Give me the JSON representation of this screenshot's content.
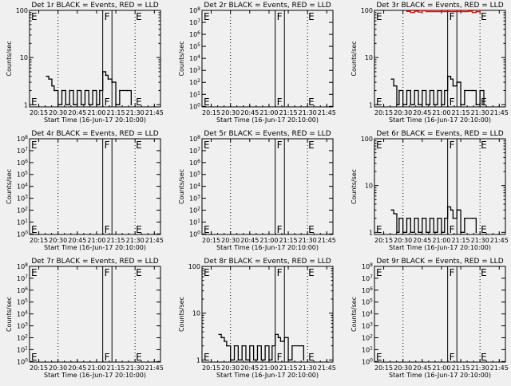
{
  "figure_background": "#f0f0f0",
  "line_color": "#000000",
  "lld_color": "#ff0000",
  "chart_data": [
    {
      "type": "line",
      "title": "Det 1r BLACK = Events, RED = LLD",
      "xlabel": "Start Time (16-Jun-17 20:10:00)",
      "ylabel": "Counts/sec",
      "scale": "log",
      "ylim": [
        0.9,
        100
      ],
      "y_ticks": [
        1,
        10,
        100
      ],
      "y_tick_labels": [
        "1",
        "10",
        "100"
      ],
      "xlim": [
        20.13,
        21.83
      ],
      "x_tick_labels": [
        "20:15",
        "20:30",
        "20:45",
        "21:00",
        "21:15",
        "21:30",
        "21:45"
      ],
      "x_tick_values": [
        20.25,
        20.5,
        20.75,
        21.0,
        21.25,
        21.5,
        21.75
      ],
      "dotted_lines": [
        20.5,
        21.5
      ],
      "solid_lines": [
        21.08,
        21.2
      ],
      "markers": [
        {
          "label": "E",
          "x": 20.14
        },
        {
          "label": "F",
          "x": 21.09
        },
        {
          "label": "E",
          "x": 21.5
        }
      ],
      "series": [
        {
          "name": "Events",
          "x": [
            20.35,
            20.38,
            20.42,
            20.45,
            20.5,
            20.55,
            20.6,
            20.65,
            20.7,
            20.75,
            20.8,
            20.85,
            20.9,
            20.95,
            21.0,
            21.04,
            21.08,
            21.12,
            21.15,
            21.2,
            21.25,
            21.3,
            21.4,
            21.45
          ],
          "values": [
            4.0,
            3.5,
            2.5,
            2,
            1,
            2,
            1,
            2,
            1,
            2,
            1,
            2,
            1,
            2,
            1,
            2,
            5.0,
            4.2,
            3.5,
            3.0,
            1,
            2,
            2,
            1
          ]
        },
        {
          "name": "LLD",
          "x": [],
          "values": []
        }
      ]
    },
    {
      "type": "line",
      "title": "Det 2r BLACK = Events, RED = LLD",
      "xlabel": "Start Time (16-Jun-17 20:10:00)",
      "ylabel": "Counts/sec",
      "scale": "log",
      "ylim": [
        0.9,
        100000000.0
      ],
      "y_ticks": [
        1,
        10,
        100,
        1000,
        10000,
        100000,
        1000000,
        10000000,
        100000000.0
      ],
      "y_tick_labels": [
        "10^0",
        "10^1",
        "10^2",
        "10^3",
        "10^4",
        "10^5",
        "10^6",
        "10^7",
        "10^8"
      ],
      "xlim": [
        20.13,
        21.83
      ],
      "x_tick_labels": [
        "20:15",
        "20:30",
        "20:45",
        "21:00",
        "21:15",
        "21:30",
        "21:45"
      ],
      "x_tick_values": [
        20.25,
        20.5,
        20.75,
        21.0,
        21.25,
        21.5,
        21.75
      ],
      "dotted_lines": [
        20.5,
        21.5
      ],
      "solid_lines": [
        21.08,
        21.2
      ],
      "markers": [
        {
          "label": "E",
          "x": 20.14
        },
        {
          "label": "F",
          "x": 21.09
        },
        {
          "label": "E",
          "x": 21.5
        }
      ],
      "series": [
        {
          "name": "Events",
          "x": [],
          "values": []
        },
        {
          "name": "LLD",
          "x": [],
          "values": []
        }
      ]
    },
    {
      "type": "line",
      "title": "Det 3r BLACK = Events, RED = LLD",
      "xlabel": "Start Time (16-Jun-17 20:10:00)",
      "ylabel": "Counts/sec",
      "scale": "log",
      "ylim": [
        0.9,
        100
      ],
      "y_ticks": [
        1,
        10,
        100
      ],
      "y_tick_labels": [
        "1",
        "10",
        "100"
      ],
      "xlim": [
        20.13,
        21.83
      ],
      "x_tick_labels": [
        "20:15",
        "20:30",
        "20:45",
        "21:00",
        "21:15",
        "21:30",
        "21:45"
      ],
      "x_tick_values": [
        20.25,
        20.5,
        20.75,
        21.0,
        21.25,
        21.5,
        21.75
      ],
      "dotted_lines": [
        20.5,
        21.5
      ],
      "solid_lines": [
        21.08,
        21.2
      ],
      "markers": [
        {
          "label": "E",
          "x": 20.14
        },
        {
          "label": "F",
          "x": 21.09
        },
        {
          "label": "E",
          "x": 21.5
        }
      ],
      "series": [
        {
          "name": "Events",
          "x": [
            20.35,
            20.38,
            20.42,
            20.45,
            20.5,
            20.55,
            20.6,
            20.65,
            20.7,
            20.75,
            20.8,
            20.85,
            20.9,
            20.95,
            21.0,
            21.04,
            21.08,
            21.12,
            21.15,
            21.2,
            21.25,
            21.3,
            21.4,
            21.45,
            21.5,
            21.55
          ],
          "values": [
            3.5,
            2.5,
            1,
            2,
            1,
            2,
            1,
            2,
            1,
            2,
            1,
            2,
            1,
            2,
            1,
            2,
            4.0,
            3.5,
            2.5,
            3.0,
            1,
            2,
            2,
            1,
            2,
            1
          ]
        },
        {
          "name": "LLD",
          "x": [
            20.55,
            20.6,
            20.65,
            20.7,
            20.75,
            20.8,
            21.35,
            21.4,
            21.45,
            21.5
          ],
          "values": [
            95,
            90,
            96,
            92,
            98,
            94,
            96,
            90,
            94,
            98
          ]
        }
      ]
    },
    {
      "type": "line",
      "title": "Det 4r BLACK = Events, RED = LLD",
      "xlabel": "Start Time (16-Jun-17 20:10:00)",
      "ylabel": "Counts/sec",
      "scale": "log",
      "ylim": [
        0.9,
        100000000.0
      ],
      "y_ticks": [
        1,
        10,
        100,
        1000,
        10000,
        100000,
        1000000,
        10000000,
        100000000.0
      ],
      "y_tick_labels": [
        "10^0",
        "10^1",
        "10^2",
        "10^3",
        "10^4",
        "10^5",
        "10^6",
        "10^7",
        "10^8"
      ],
      "xlim": [
        20.13,
        21.83
      ],
      "x_tick_labels": [
        "20:15",
        "20:30",
        "20:45",
        "21:00",
        "21:15",
        "21:30",
        "21:45"
      ],
      "x_tick_values": [
        20.25,
        20.5,
        20.75,
        21.0,
        21.25,
        21.5,
        21.75
      ],
      "dotted_lines": [
        20.5,
        21.5
      ],
      "solid_lines": [
        21.08,
        21.2
      ],
      "markers": [
        {
          "label": "E",
          "x": 20.14
        },
        {
          "label": "F",
          "x": 21.09
        },
        {
          "label": "E",
          "x": 21.5
        }
      ],
      "series": [
        {
          "name": "Events",
          "x": [],
          "values": []
        },
        {
          "name": "LLD",
          "x": [],
          "values": []
        }
      ]
    },
    {
      "type": "line",
      "title": "Det 5r BLACK = Events, RED = LLD",
      "xlabel": "Start Time (16-Jun-17 20:10:00)",
      "ylabel": "Counts/sec",
      "scale": "log",
      "ylim": [
        0.9,
        100000000.0
      ],
      "y_ticks": [
        1,
        10,
        100,
        1000,
        10000,
        100000,
        1000000,
        10000000,
        100000000.0
      ],
      "y_tick_labels": [
        "10^0",
        "10^1",
        "10^2",
        "10^3",
        "10^4",
        "10^5",
        "10^6",
        "10^7",
        "10^8"
      ],
      "xlim": [
        20.13,
        21.83
      ],
      "x_tick_labels": [
        "20:15",
        "20:30",
        "20:45",
        "21:00",
        "21:15",
        "21:30",
        "21:45"
      ],
      "x_tick_values": [
        20.25,
        20.5,
        20.75,
        21.0,
        21.25,
        21.5,
        21.75
      ],
      "dotted_lines": [
        20.5,
        21.5
      ],
      "solid_lines": [
        21.08,
        21.2
      ],
      "markers": [
        {
          "label": "E",
          "x": 20.14
        },
        {
          "label": "F",
          "x": 21.09
        },
        {
          "label": "E",
          "x": 21.5
        }
      ],
      "series": [
        {
          "name": "Events",
          "x": [],
          "values": []
        },
        {
          "name": "LLD",
          "x": [],
          "values": []
        }
      ]
    },
    {
      "type": "line",
      "title": "Det 6r BLACK = Events, RED = LLD",
      "xlabel": "Start Time (16-Jun-17 20:10:00)",
      "ylabel": "Counts/sec",
      "scale": "log",
      "ylim": [
        0.9,
        100
      ],
      "y_ticks": [
        1,
        10,
        100
      ],
      "y_tick_labels": [
        "1",
        "10",
        "100"
      ],
      "xlim": [
        20.13,
        21.83
      ],
      "x_tick_labels": [
        "20:15",
        "20:30",
        "20:45",
        "21:00",
        "21:15",
        "21:30",
        "21:45"
      ],
      "x_tick_values": [
        20.25,
        20.5,
        20.75,
        21.0,
        21.25,
        21.5,
        21.75
      ],
      "dotted_lines": [
        20.5,
        21.5
      ],
      "solid_lines": [
        21.08,
        21.2
      ],
      "markers": [
        {
          "label": "E",
          "x": 20.14
        },
        {
          "label": "F",
          "x": 21.09
        },
        {
          "label": "E",
          "x": 21.5
        }
      ],
      "series": [
        {
          "name": "Events",
          "x": [
            20.35,
            20.38,
            20.42,
            20.45,
            20.5,
            20.55,
            20.6,
            20.65,
            20.7,
            20.75,
            20.8,
            20.85,
            20.9,
            20.95,
            21.0,
            21.04,
            21.08,
            21.12,
            21.15,
            21.2,
            21.25,
            21.3,
            21.4,
            21.45
          ],
          "values": [
            3.0,
            2.5,
            1,
            2,
            1,
            2,
            1,
            2,
            1,
            2,
            1,
            2,
            1,
            2,
            1,
            2,
            3.5,
            3.0,
            2.0,
            3.0,
            1,
            2,
            2,
            1
          ]
        },
        {
          "name": "LLD",
          "x": [],
          "values": []
        }
      ]
    },
    {
      "type": "line",
      "title": "Det 7r BLACK = Events, RED = LLD",
      "xlabel": "Start Time (16-Jun-17 20:10:00)",
      "ylabel": "Counts/sec",
      "scale": "log",
      "ylim": [
        0.9,
        100000000.0
      ],
      "y_ticks": [
        1,
        10,
        100,
        1000,
        10000,
        100000,
        1000000,
        10000000,
        100000000.0
      ],
      "y_tick_labels": [
        "10^0",
        "10^1",
        "10^2",
        "10^3",
        "10^4",
        "10^5",
        "10^6",
        "10^7",
        "10^8"
      ],
      "xlim": [
        20.13,
        21.83
      ],
      "x_tick_labels": [
        "20:15",
        "20:30",
        "20:45",
        "21:00",
        "21:15",
        "21:30",
        "21:45"
      ],
      "x_tick_values": [
        20.25,
        20.5,
        20.75,
        21.0,
        21.25,
        21.5,
        21.75
      ],
      "dotted_lines": [
        20.5,
        21.5
      ],
      "solid_lines": [
        21.08,
        21.2
      ],
      "markers": [
        {
          "label": "E",
          "x": 20.14
        },
        {
          "label": "F",
          "x": 21.09
        },
        {
          "label": "E",
          "x": 21.5
        }
      ],
      "series": [
        {
          "name": "Events",
          "x": [],
          "values": []
        },
        {
          "name": "LLD",
          "x": [],
          "values": []
        }
      ]
    },
    {
      "type": "line",
      "title": "Det 8r BLACK = Events, RED = LLD",
      "xlabel": "Start Time (16-Jun-17 20:10:00)",
      "ylabel": "Counts/sec",
      "scale": "log",
      "ylim": [
        0.9,
        100
      ],
      "y_ticks": [
        1,
        10,
        100
      ],
      "y_tick_labels": [
        "1",
        "10",
        "100"
      ],
      "xlim": [
        20.13,
        21.83
      ],
      "x_tick_labels": [
        "20:15",
        "20:30",
        "20:45",
        "21:00",
        "21:15",
        "21:30",
        "21:45"
      ],
      "x_tick_values": [
        20.25,
        20.5,
        20.75,
        21.0,
        21.25,
        21.5,
        21.75
      ],
      "dotted_lines": [
        20.5,
        21.5
      ],
      "solid_lines": [
        21.08,
        21.2
      ],
      "markers": [
        {
          "label": "E",
          "x": 20.14
        },
        {
          "label": "F",
          "x": 21.09
        },
        {
          "label": "E",
          "x": 21.5
        }
      ],
      "series": [
        {
          "name": "Events",
          "x": [
            20.35,
            20.38,
            20.42,
            20.45,
            20.5,
            20.55,
            20.6,
            20.65,
            20.7,
            20.75,
            20.8,
            20.85,
            20.9,
            20.95,
            21.0,
            21.04,
            21.08,
            21.12,
            21.15,
            21.2,
            21.25,
            21.3,
            21.4,
            21.45
          ],
          "values": [
            3.5,
            3.0,
            2.5,
            2,
            1,
            2,
            1,
            2,
            1,
            2,
            1,
            2,
            1,
            2,
            1,
            2,
            3.5,
            3.0,
            2.5,
            3.0,
            1,
            2,
            2,
            1
          ]
        },
        {
          "name": "LLD",
          "x": [],
          "values": []
        }
      ]
    },
    {
      "type": "line",
      "title": "Det 9r BLACK = Events, RED = LLD",
      "xlabel": "Start Time (16-Jun-17 20:10:00)",
      "ylabel": "Counts/sec",
      "scale": "log",
      "ylim": [
        0.9,
        100000000.0
      ],
      "y_ticks": [
        1,
        10,
        100,
        1000,
        10000,
        100000,
        1000000,
        10000000,
        100000000.0
      ],
      "y_tick_labels": [
        "10^0",
        "10^1",
        "10^2",
        "10^3",
        "10^4",
        "10^5",
        "10^6",
        "10^7",
        "10^8"
      ],
      "xlim": [
        20.13,
        21.83
      ],
      "x_tick_labels": [
        "20:15",
        "20:30",
        "20:45",
        "21:00",
        "21:15",
        "21:30",
        "21:45"
      ],
      "x_tick_values": [
        20.25,
        20.5,
        20.75,
        21.0,
        21.25,
        21.5,
        21.75
      ],
      "dotted_lines": [
        20.5,
        21.5
      ],
      "solid_lines": [
        21.08,
        21.2
      ],
      "markers": [
        {
          "label": "E",
          "x": 20.14
        },
        {
          "label": "F",
          "x": 21.09
        },
        {
          "label": "E",
          "x": 21.5
        }
      ],
      "series": [
        {
          "name": "Events",
          "x": [],
          "values": []
        },
        {
          "name": "LLD",
          "x": [],
          "values": []
        }
      ]
    }
  ]
}
